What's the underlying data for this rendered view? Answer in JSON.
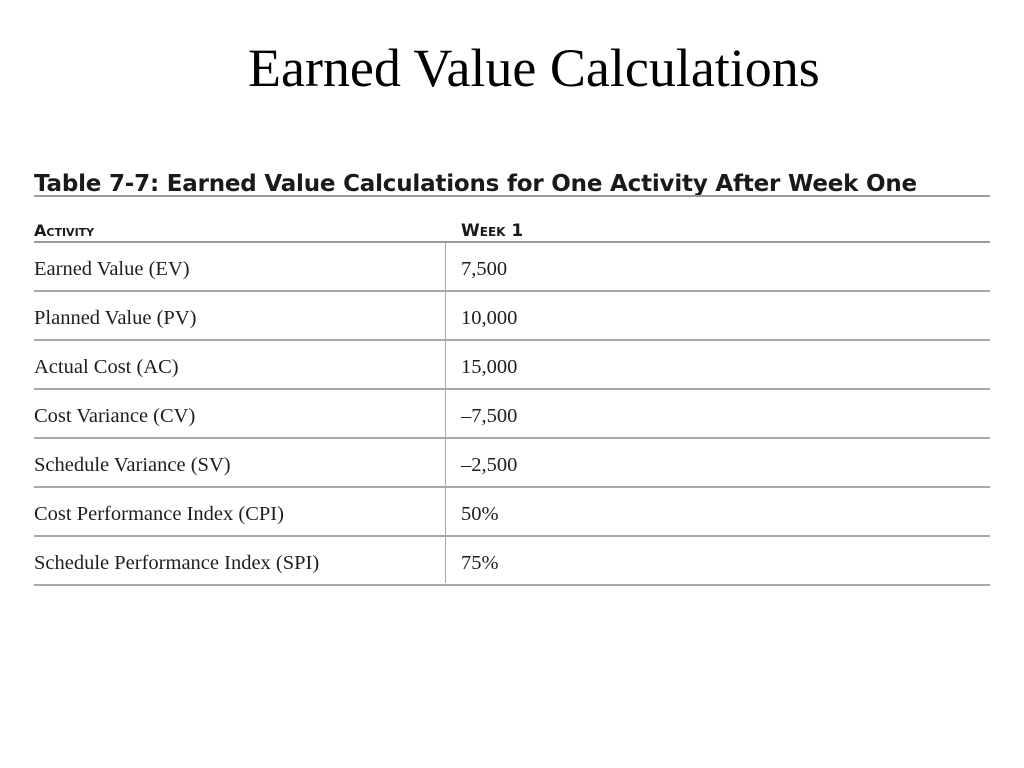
{
  "slide": {
    "title": "Earned Value Calculations"
  },
  "table": {
    "caption": "Table 7-7: Earned Value Calculations for One Activity After Week One",
    "headers": {
      "activity": "Activity",
      "week": "Week 1"
    },
    "rows": [
      {
        "activity": "Earned Value (EV)",
        "value": "7,500"
      },
      {
        "activity": "Planned Value (PV)",
        "value": "10,000"
      },
      {
        "activity": "Actual Cost (AC)",
        "value": "15,000"
      },
      {
        "activity": "Cost Variance (CV)",
        "value": "–7,500"
      },
      {
        "activity": "Schedule Variance (SV)",
        "value": "–2,500"
      },
      {
        "activity": "Cost Performance Index (CPI)",
        "value": "50%"
      },
      {
        "activity": "Schedule Performance Index (SPI)",
        "value": "75%"
      }
    ]
  }
}
